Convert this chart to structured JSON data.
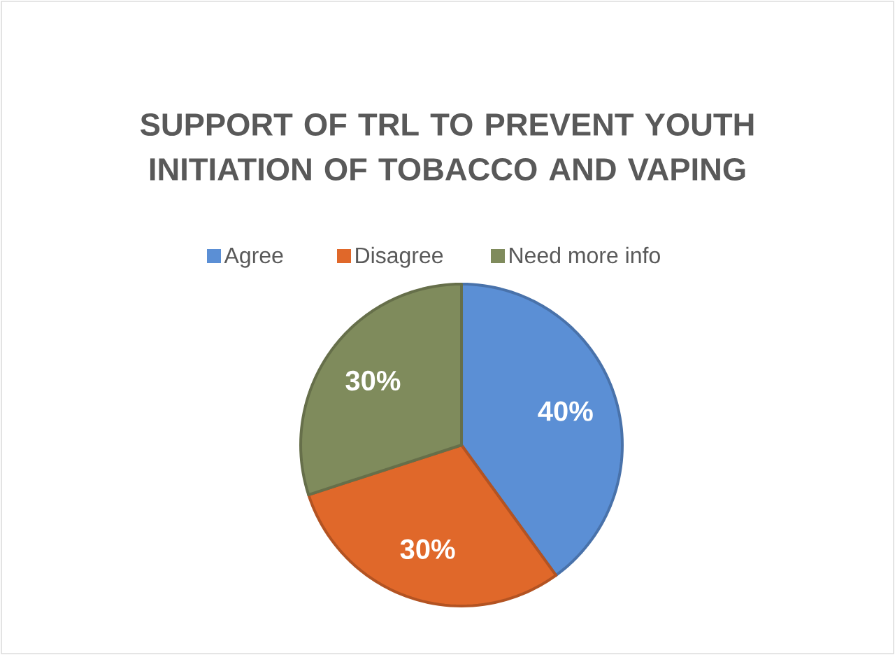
{
  "chart_data": {
    "type": "pie",
    "title": "SUPPORT OF TRL TO PREVENT YOUTH INITIATION OF TOBACCO AND VAPING",
    "categories": [
      "Agree",
      "Disagree",
      "Need more info"
    ],
    "values": [
      40,
      30,
      30
    ],
    "value_labels": [
      "40%",
      "30%",
      "30%"
    ],
    "colors": [
      "#5b8fd5",
      "#e0682a",
      "#7f8b5c"
    ],
    "legend": "top"
  }
}
